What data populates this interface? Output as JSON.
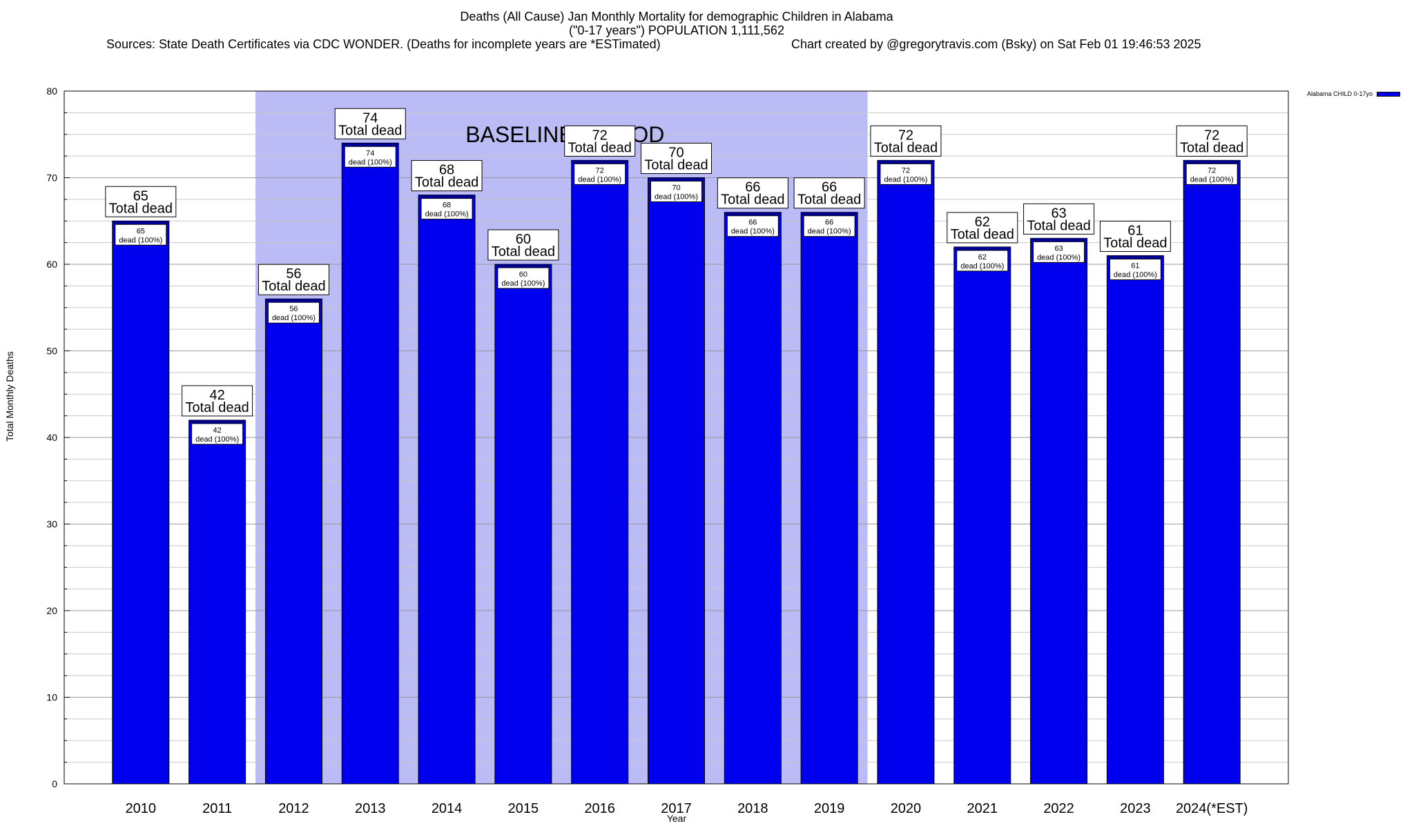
{
  "title": {
    "line1": "Deaths (All Cause) Jan Monthly Mortality for demographic Children in Alabama",
    "line2": "(\"0-17 years\") POPULATION 1,111,562",
    "sources": "Sources: State Death Certificates via CDC WONDER. (Deaths for incomplete years are *ESTimated)",
    "credit": "Chart created by @gregorytravis.com (Bsky) on Sat Feb 01 19:46:53 2025"
  },
  "legend": {
    "label": "Alabama CHILD 0-17yo",
    "color": "#0000ee"
  },
  "chart_data": {
    "type": "bar",
    "title": "Deaths (All Cause) Jan Monthly Mortality for demographic Children in Alabama",
    "xlabel": "Year",
    "ylabel": "Total Monthly Deaths",
    "ylim": [
      0,
      80
    ],
    "yticks": [
      0,
      10,
      20,
      30,
      40,
      50,
      60,
      70,
      80
    ],
    "grid": true,
    "legend_position": "top-right outside",
    "categories": [
      "2010",
      "2011",
      "2012",
      "2013",
      "2014",
      "2015",
      "2016",
      "2017",
      "2018",
      "2019",
      "2020",
      "2021",
      "2022",
      "2023",
      "2024(*EST)"
    ],
    "series": [
      {
        "name": "Alabama CHILD 0-17yo",
        "values": [
          65,
          42,
          56,
          74,
          68,
          60,
          72,
          70,
          66,
          66,
          72,
          62,
          63,
          61,
          72
        ]
      }
    ],
    "total_label_suffix": "Total dead",
    "inner_label_suffix": "dead (100%)",
    "baseline": {
      "label": "BASELINE PERIOD",
      "from": "2012",
      "to": "2019",
      "color": "#bbbbf5"
    },
    "bar_color": "#0000ee",
    "bar_cap_color": "#00008b"
  }
}
